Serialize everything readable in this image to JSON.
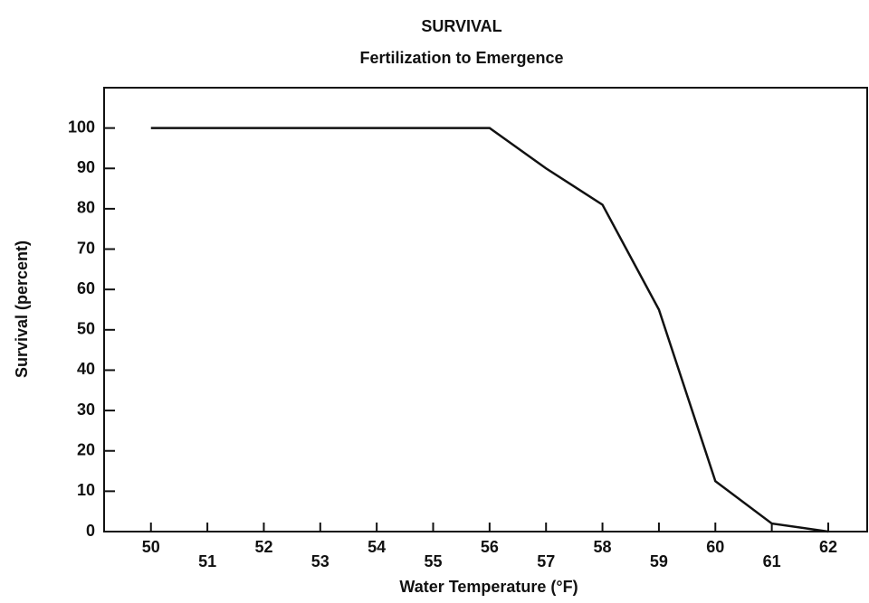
{
  "chart_data": {
    "type": "line",
    "title": "SURVIVAL",
    "subtitle": "Fertilization to Emergence",
    "x_label": "Water Temperature (°F)",
    "y_label": "Survival (percent)",
    "x": [
      50,
      56,
      57,
      58,
      59,
      60,
      61,
      62
    ],
    "series": [
      {
        "name": "Survival",
        "color": "#111111",
        "values": [
          100,
          100,
          90,
          81,
          55,
          12.5,
          2,
          0
        ]
      }
    ],
    "xlim": [
      49.17,
      62.69
    ],
    "xticks": [
      50,
      51,
      52,
      53,
      54,
      55,
      56,
      57,
      58,
      59,
      60,
      61,
      62
    ],
    "ylim": [
      0,
      110
    ],
    "yticks": [
      0,
      10,
      20,
      30,
      40,
      50,
      60,
      70,
      80,
      90,
      100
    ]
  }
}
